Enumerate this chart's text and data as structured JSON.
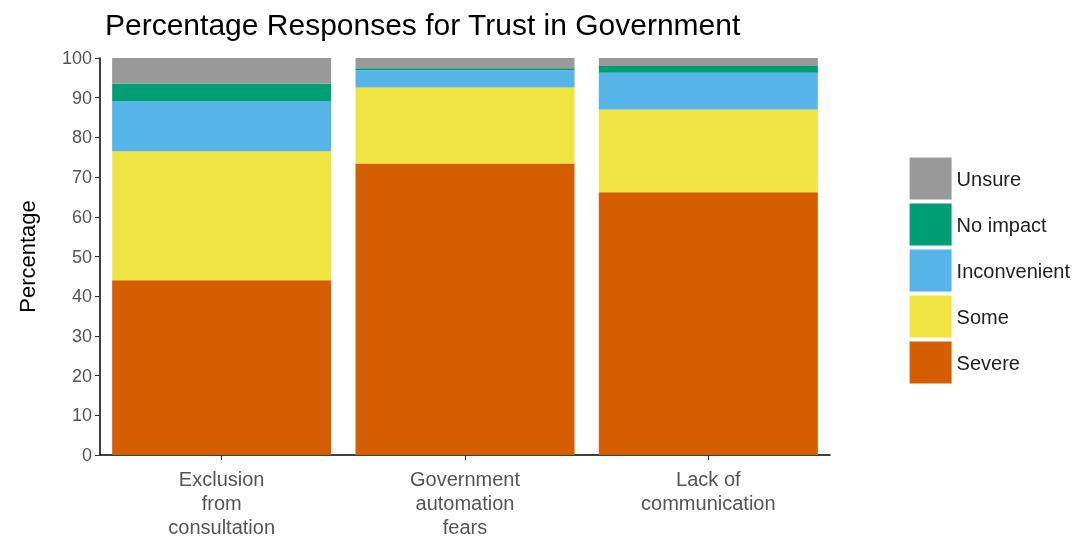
{
  "chart_data": {
    "type": "bar",
    "title": "Percentage Responses for Trust in Government",
    "ylabel": "Percentage",
    "categories": [
      "Exclusion\nfrom\nconsultation",
      "Government\nautomation\nfears",
      "Lack of\ncommunication"
    ],
    "stacked": true,
    "series": [
      {
        "name": "Severe",
        "color": "#d55e00",
        "values": [
          44.0,
          73.4,
          66.2
        ]
      },
      {
        "name": "Some",
        "color": "#f0e442",
        "values": [
          32.5,
          19.2,
          20.8
        ]
      },
      {
        "name": "Inconvenient",
        "color": "#56b4e9",
        "values": [
          12.7,
          4.3,
          9.3
        ]
      },
      {
        "name": "No impact",
        "color": "#009e73",
        "values": [
          4.4,
          0.5,
          1.7
        ]
      },
      {
        "name": "Unsure",
        "color": "#999999",
        "values": [
          6.4,
          2.6,
          2.0
        ]
      }
    ],
    "ylim": [
      0,
      100
    ],
    "yticks": [
      0,
      10,
      20,
      30,
      40,
      50,
      60,
      70,
      80,
      90,
      100
    ],
    "grid": false,
    "legend": "right"
  }
}
